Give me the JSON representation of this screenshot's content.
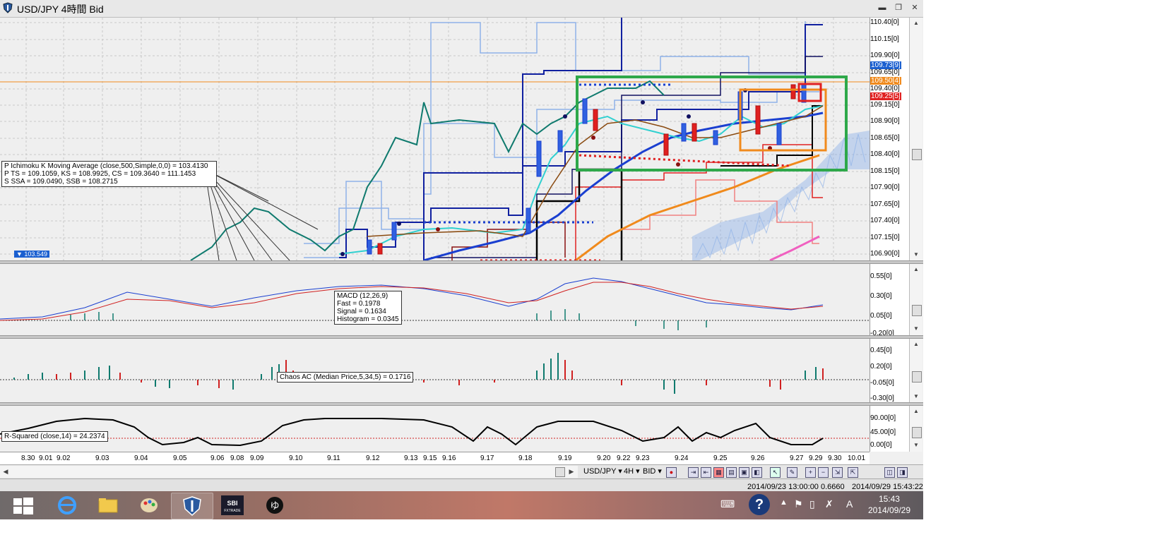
{
  "window": {
    "title": "USD/JPY 4時間 Bid",
    "btn_min": "▬",
    "btn_restore": "❐",
    "btn_close": "✕"
  },
  "main_pane": {
    "price_scale": [
      "110.40[0]",
      "110.15[0]",
      "109.90[0]",
      "109.65[0]",
      "109.40[0]",
      "109.15[0]",
      "108.90[0]",
      "108.65[0]",
      "108.40[0]",
      "108.15[0]",
      "107.90[0]",
      "107.65[0]",
      "107.40[0]",
      "107.15[0]",
      "106.90[0]"
    ],
    "tags": [
      {
        "text": "109.73[9]",
        "color": "#1a5fd0"
      },
      {
        "text": "109.50[4]",
        "color": "#f08a1c"
      },
      {
        "text": "109.25[5]",
        "color": "#e02020"
      }
    ],
    "info_lines": [
      "P Ichimoku K Moving Average (close,500,Simple,0,0) = 103.4130",
      "P TS = 109.1059, KS = 108.9925, CS = 109.3640 = 111.1453",
      "S SSA = 109.0490, SSB = 108.2715"
    ],
    "marker_label": "103.549"
  },
  "macd_pane": {
    "scale": [
      "0.55[0]",
      "0.30[0]",
      "0.05[0]",
      "-0.20[0]"
    ],
    "info_lines": [
      "MACD (12,26,9)",
      "Fast = 0.1978",
      "Signal = 0.1634",
      "Histogram = 0.0345"
    ]
  },
  "ac_pane": {
    "scale": [
      "0.45[0]",
      "0.20[0]",
      "-0.05[0]",
      "-0.30[0]"
    ],
    "info": "Chaos AC (Median Price,5,34,5) = 0.1716"
  },
  "rsq_pane": {
    "scale": [
      "90.00[0]",
      "45.00[0]",
      "0.00[0]"
    ],
    "info": "R-Squared (close,14) = 24.2374"
  },
  "x_axis": [
    "8.30",
    "9.01",
    "9.02",
    "9.03",
    "9.04",
    "9.05",
    "9.06",
    "9.08",
    "9.09",
    "9.10",
    "9.11",
    "9.12",
    "9.13",
    "9.15",
    "9.16",
    "9.17",
    "9.18",
    "9.19",
    "9.20",
    "9.22",
    "9.23",
    "9.24",
    "9.25",
    "9.26",
    "9.27",
    "9.29",
    "9.30",
    "10.01"
  ],
  "toolbar": {
    "symbol": "USD/JPY ▾",
    "timeframe": "4H ▾",
    "price_type": "BID ▾"
  },
  "status": {
    "left": "2014/09/23 13:00:00  0.6660",
    "right": "2014/09/29 15:43:22"
  },
  "taskbar": {
    "time": "15:43",
    "date": "2014/09/29",
    "ime": "A",
    "help": "?"
  },
  "colors": {
    "green_box": "#2ea84a",
    "orange_box": "#f08a1c",
    "red_box": "#e02020",
    "teal_line": "#0f7a6e",
    "cloud": "#8fb2e8"
  }
}
